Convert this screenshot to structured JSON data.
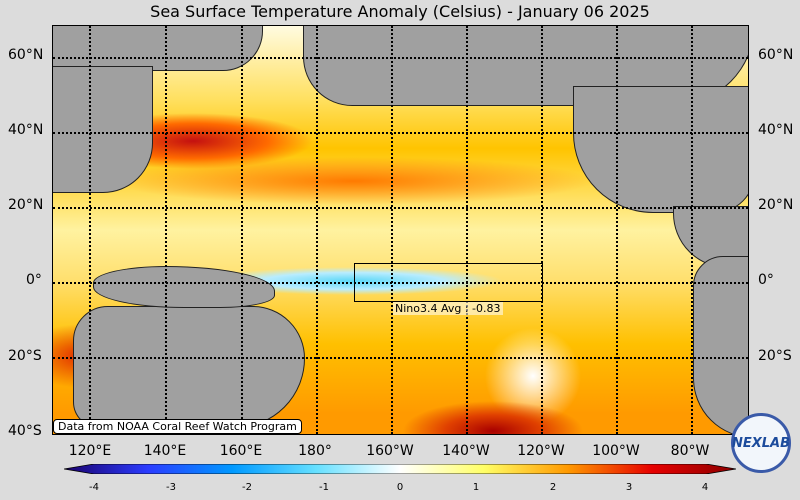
{
  "title": "Sea Surface Temperature Anomaly (Celsius) - January 06 2025",
  "latitude_labels": [
    "60°N",
    "40°N",
    "20°N",
    "0°",
    "20°S",
    "40°S"
  ],
  "longitude_labels": [
    "120°E",
    "140°E",
    "160°E",
    "180°",
    "160°W",
    "140°W",
    "120°W",
    "100°W",
    "80°W"
  ],
  "nino_label": "Nino3.4 Avg : -0.83",
  "credit": "Data from NOAA Coral Reef Watch Program",
  "logo_text": "NEXLAB",
  "colorbar": {
    "ticks": [
      "-4",
      "-3",
      "-2",
      "-1",
      "0",
      "1",
      "2",
      "3",
      "4"
    ],
    "colors": [
      "#1a006b",
      "#2b3cff",
      "#0099ff",
      "#66e0ff",
      "#ffffff",
      "#ffff66",
      "#ff9900",
      "#e60000",
      "#8b0000"
    ]
  },
  "colors": {
    "land": "#a0a0a0",
    "background": "#dcdcdc"
  }
}
